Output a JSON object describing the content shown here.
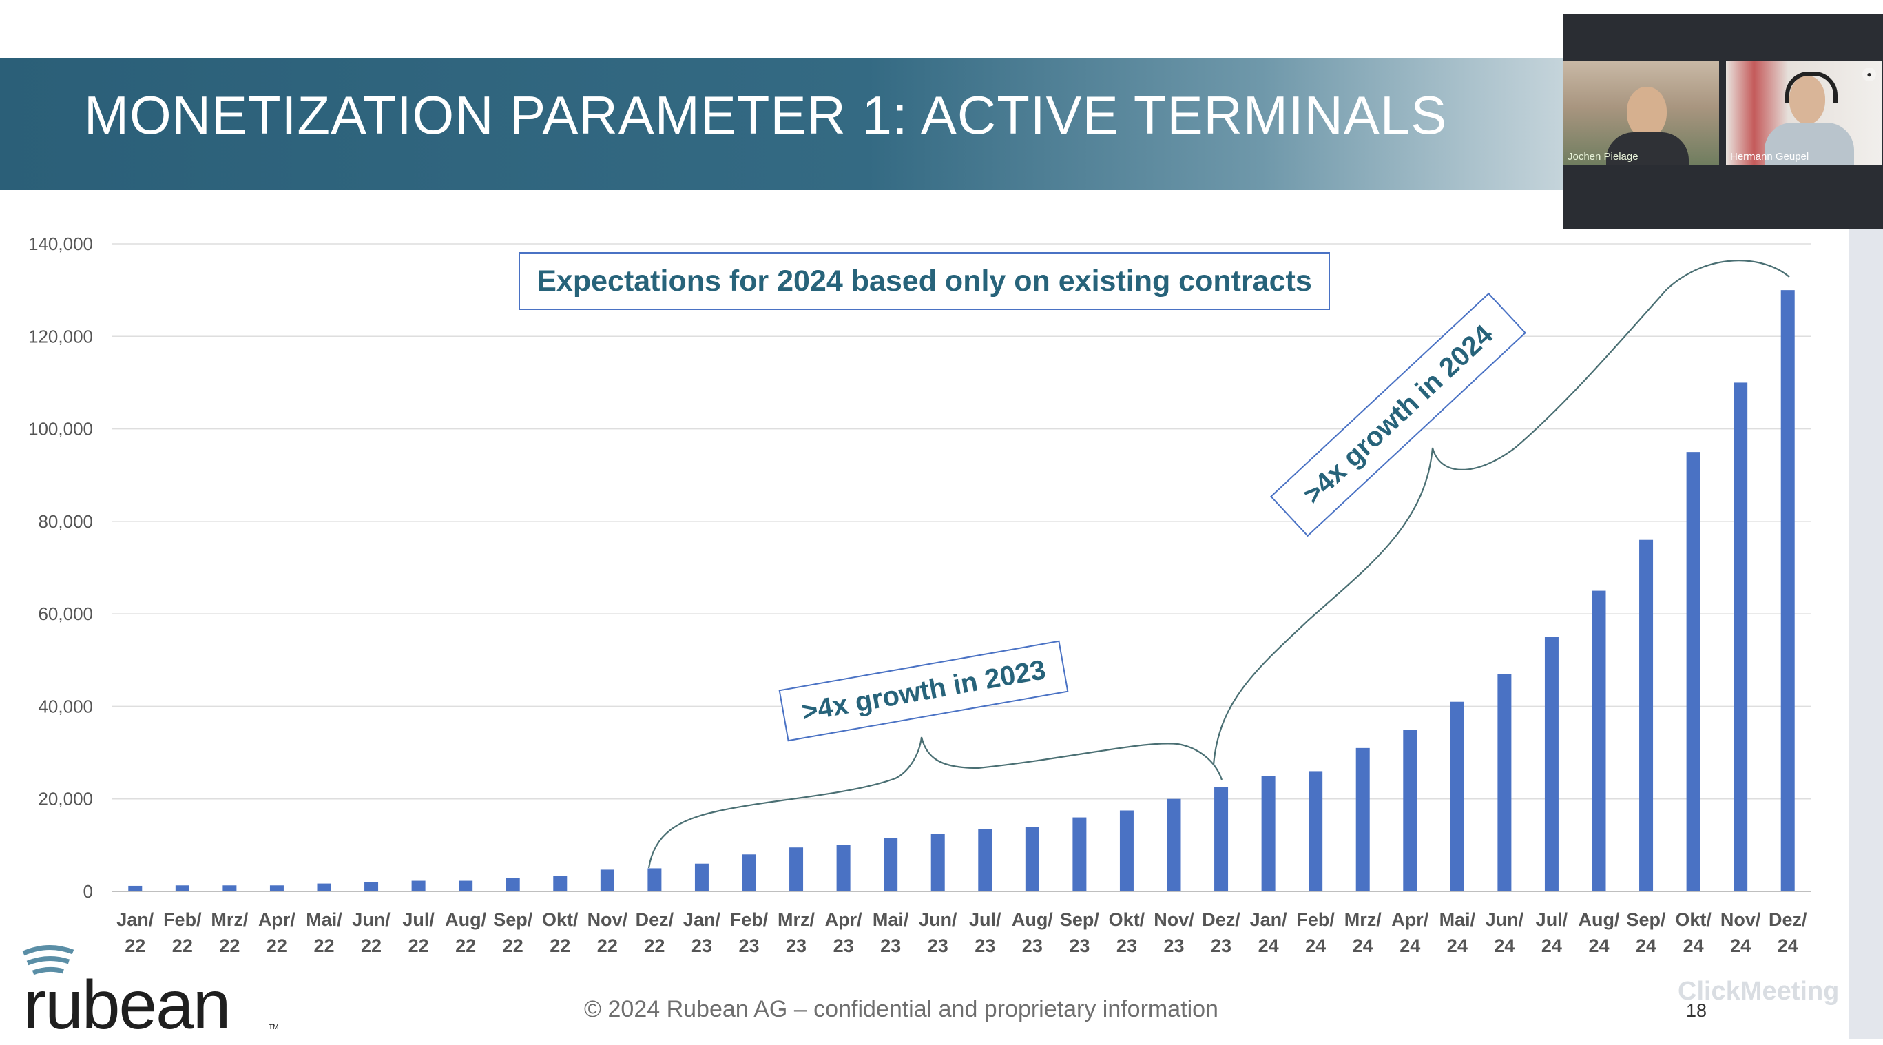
{
  "slide": {
    "title": "MONETIZATION PARAMETER 1: ACTIVE TERMINALS",
    "footer": "© 2024 Rubean AG – confidential and proprietary information",
    "page_number": "18",
    "logo": "rubean",
    "logo_tm": "TM",
    "watermark": "ClickMeeting"
  },
  "annotations": {
    "expectations": "Expectations for 2024 based only on existing contracts",
    "growth_2023": ">4x growth in 2023",
    "growth_2024": ">4x growth in 2024"
  },
  "video": {
    "participants": [
      {
        "name": "Jochen Pielage"
      },
      {
        "name": "Hermann Geupel"
      }
    ]
  },
  "colors": {
    "bar": "#4a72c4",
    "header": "#2b5f78",
    "annotation_text": "#27637a"
  },
  "chart_data": {
    "type": "bar",
    "title": "",
    "xlabel": "",
    "ylabel": "",
    "ylim": [
      0,
      140000
    ],
    "yticks": [
      0,
      20000,
      40000,
      60000,
      80000,
      100000,
      120000,
      140000
    ],
    "ytick_labels": [
      "0",
      "20,000",
      "40,000",
      "60,000",
      "80,000",
      "100,000",
      "120,000",
      "140,000"
    ],
    "grid": true,
    "categories": [
      [
        "Jan/",
        "22"
      ],
      [
        "Feb/",
        "22"
      ],
      [
        "Mrz/",
        "22"
      ],
      [
        "Apr/",
        "22"
      ],
      [
        "Mai/",
        "22"
      ],
      [
        "Jun/",
        "22"
      ],
      [
        "Jul/",
        "22"
      ],
      [
        "Aug/",
        "22"
      ],
      [
        "Sep/",
        "22"
      ],
      [
        "Okt/",
        "22"
      ],
      [
        "Nov/",
        "22"
      ],
      [
        "Dez/",
        "22"
      ],
      [
        "Jan/",
        "23"
      ],
      [
        "Feb/",
        "23"
      ],
      [
        "Mrz/",
        "23"
      ],
      [
        "Apr/",
        "23"
      ],
      [
        "Mai/",
        "23"
      ],
      [
        "Jun/",
        "23"
      ],
      [
        "Jul/",
        "23"
      ],
      [
        "Aug/",
        "23"
      ],
      [
        "Sep/",
        "23"
      ],
      [
        "Okt/",
        "23"
      ],
      [
        "Nov/",
        "23"
      ],
      [
        "Dez/",
        "23"
      ],
      [
        "Jan/",
        "24"
      ],
      [
        "Feb/",
        "24"
      ],
      [
        "Mrz/",
        "24"
      ],
      [
        "Apr/",
        "24"
      ],
      [
        "Mai/",
        "24"
      ],
      [
        "Jun/",
        "24"
      ],
      [
        "Jul/",
        "24"
      ],
      [
        "Aug/",
        "24"
      ],
      [
        "Sep/",
        "24"
      ],
      [
        "Okt/",
        "24"
      ],
      [
        "Nov/",
        "24"
      ],
      [
        "Dez/",
        "24"
      ]
    ],
    "values": [
      1200,
      1300,
      1300,
      1300,
      1700,
      2000,
      2300,
      2300,
      2900,
      3400,
      4700,
      5000,
      6000,
      8000,
      9500,
      10000,
      11500,
      12500,
      13500,
      14000,
      16000,
      17500,
      20000,
      22500,
      25000,
      26000,
      31000,
      35000,
      41000,
      47000,
      55000,
      65000,
      76000,
      95000,
      110000,
      130000
    ]
  }
}
